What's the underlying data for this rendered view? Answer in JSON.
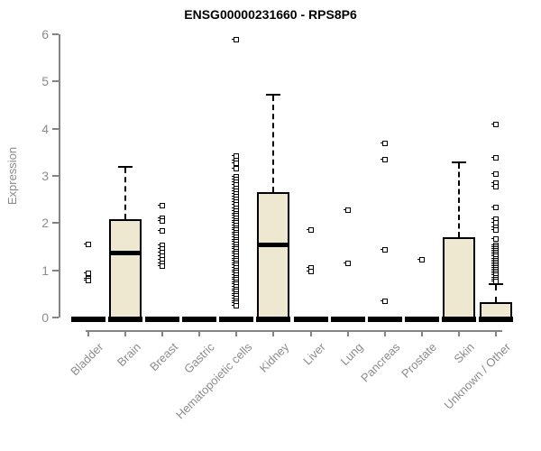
{
  "chart_data": {
    "type": "box",
    "title": "ENSG00000231660 - RPS8P6",
    "ylabel": "Expression",
    "xlabel": "",
    "ylim": [
      0,
      6
    ],
    "yticks": [
      0,
      1,
      2,
      3,
      4,
      5,
      6
    ],
    "grid": false,
    "legend": "none",
    "box_fill_color": "#EDE8CF",
    "box_border_color": "#000000",
    "axis_color": "#848484",
    "tick_text_color": "#8c8c8c",
    "title_color": "#000000",
    "categories": [
      {
        "label": "Bladder",
        "q1": 0,
        "median": 0,
        "q3": 0,
        "whisker_low": 0,
        "whisker_high": 0,
        "outliers": [
          1.55,
          0.93,
          0.82,
          0.78
        ]
      },
      {
        "label": "Brain",
        "q1": 0,
        "median": 1.38,
        "q3": 2.05,
        "whisker_low": 0,
        "whisker_high": 3.2,
        "outliers": []
      },
      {
        "label": "Breast",
        "q1": 0,
        "median": 0,
        "q3": 0,
        "whisker_low": 0,
        "whisker_high": 0,
        "outliers": [
          2.37,
          2.1,
          2.04,
          1.83,
          1.52,
          1.45,
          1.38,
          1.3,
          1.22,
          1.14,
          1.08
        ]
      },
      {
        "label": "Gastric",
        "q1": 0,
        "median": 0,
        "q3": 0,
        "whisker_low": 0,
        "whisker_high": 0,
        "outliers": []
      },
      {
        "label": "Hematopoietic cells",
        "q1": 0,
        "median": 0,
        "q3": 0,
        "whisker_low": 0,
        "whisker_high": 0,
        "outliers": [
          5.88,
          3.42,
          3.33,
          3.27,
          3.16,
          2.98,
          2.92,
          2.86,
          2.8,
          2.74,
          2.68,
          2.62,
          2.56,
          2.5,
          2.44,
          2.38,
          2.32,
          2.26,
          2.2,
          2.15,
          2.1,
          2.05,
          2.0,
          1.95,
          1.9,
          1.85,
          1.8,
          1.75,
          1.7,
          1.65,
          1.6,
          1.55,
          1.5,
          1.45,
          1.4,
          1.35,
          1.3,
          1.25,
          1.2,
          1.15,
          1.1,
          1.05,
          1.0,
          0.95,
          0.9,
          0.85,
          0.8,
          0.75,
          0.7,
          0.65,
          0.6,
          0.55,
          0.5,
          0.45,
          0.4,
          0.35,
          0.3,
          0.25
        ]
      },
      {
        "label": "Kidney",
        "q1": 0,
        "median": 1.54,
        "q3": 2.62,
        "whisker_low": 0,
        "whisker_high": 4.72,
        "outliers": []
      },
      {
        "label": "Liver",
        "q1": 0,
        "median": 0,
        "q3": 0,
        "whisker_low": 0,
        "whisker_high": 0,
        "outliers": [
          1.85,
          1.05,
          0.98
        ]
      },
      {
        "label": "Lung",
        "q1": 0,
        "median": 0,
        "q3": 0,
        "whisker_low": 0,
        "whisker_high": 0,
        "outliers": [
          2.27,
          1.15
        ]
      },
      {
        "label": "Pancreas",
        "q1": 0,
        "median": 0,
        "q3": 0,
        "whisker_low": 0,
        "whisker_high": 0,
        "outliers": [
          3.68,
          3.35,
          1.44,
          0.35
        ]
      },
      {
        "label": "Prostate",
        "q1": 0,
        "median": 0,
        "q3": 0,
        "whisker_low": 0,
        "whisker_high": 0,
        "outliers": [
          1.22
        ]
      },
      {
        "label": "Skin",
        "q1": 0,
        "median": 0,
        "q3": 1.66,
        "whisker_low": 0,
        "whisker_high": 3.28,
        "outliers": []
      },
      {
        "label": "Unknown / Other",
        "q1": 0,
        "median": 0,
        "q3": 0.28,
        "whisker_low": 0,
        "whisker_high": 0.7,
        "outliers": [
          4.09,
          3.38,
          3.04,
          2.84,
          2.78,
          2.33,
          2.08,
          2.0,
          1.92,
          1.85,
          1.66,
          1.53,
          1.49,
          1.45,
          1.41,
          1.37,
          1.33,
          1.29,
          1.25,
          1.21,
          1.17,
          1.13,
          1.09,
          1.05,
          1.01,
          0.97,
          0.93,
          0.89,
          0.85,
          0.81,
          0.77
        ]
      }
    ]
  }
}
